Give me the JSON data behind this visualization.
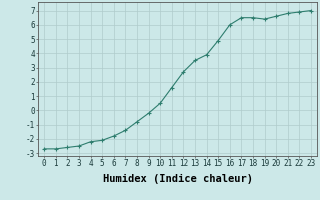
{
  "x": [
    0,
    1,
    2,
    3,
    4,
    5,
    6,
    7,
    8,
    9,
    10,
    11,
    12,
    13,
    14,
    15,
    16,
    17,
    18,
    19,
    20,
    21,
    22,
    23
  ],
  "y": [
    -2.7,
    -2.7,
    -2.6,
    -2.5,
    -2.2,
    -2.1,
    -1.8,
    -1.4,
    -0.8,
    -0.2,
    0.5,
    1.6,
    2.7,
    3.5,
    3.9,
    4.9,
    6.0,
    6.5,
    6.5,
    6.4,
    6.6,
    6.8,
    6.9,
    7.0
  ],
  "line_color": "#2e7d6e",
  "marker": "+",
  "marker_size": 3,
  "marker_linewidth": 0.8,
  "background_color": "#cce8e8",
  "grid_color": "#b0cccc",
  "xlabel": "Humidex (Indice chaleur)",
  "xlim": [
    -0.5,
    23.5
  ],
  "ylim": [
    -3.2,
    7.6
  ],
  "yticks": [
    -3,
    -2,
    -1,
    0,
    1,
    2,
    3,
    4,
    5,
    6,
    7
  ],
  "xticks": [
    0,
    1,
    2,
    3,
    4,
    5,
    6,
    7,
    8,
    9,
    10,
    11,
    12,
    13,
    14,
    15,
    16,
    17,
    18,
    19,
    20,
    21,
    22,
    23
  ],
  "tick_fontsize": 5.5,
  "xlabel_fontsize": 7.5,
  "line_width": 0.8
}
